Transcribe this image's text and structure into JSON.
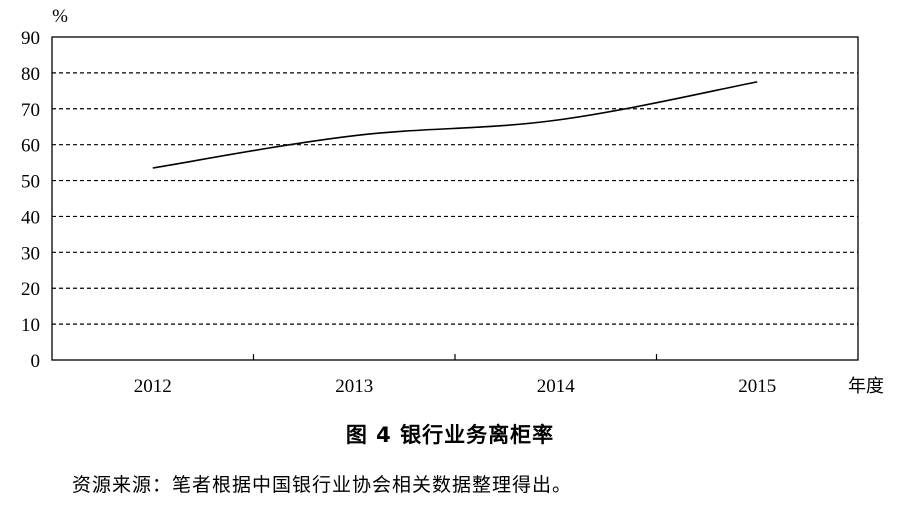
{
  "chart_data": {
    "type": "line",
    "title": "图 4  银行业务离柜率",
    "ylabel": "%",
    "xlabel": "年度",
    "categories": [
      "2012",
      "2013",
      "2014",
      "2015"
    ],
    "x": [
      2012,
      2013,
      2014,
      2015
    ],
    "yticks": [
      "0",
      "10",
      "20",
      "30",
      "40",
      "50",
      "60",
      "70",
      "80",
      "90"
    ],
    "ylim": [
      0,
      90
    ],
    "grid": "horizontal dashed",
    "series": [
      {
        "values": [
          53.5,
          62.5,
          66.8,
          77.5
        ]
      }
    ]
  },
  "caption": "图 4  银行业务离柜率",
  "source": "资源来源：笔者根据中国银行业协会相关数据整理得出。"
}
